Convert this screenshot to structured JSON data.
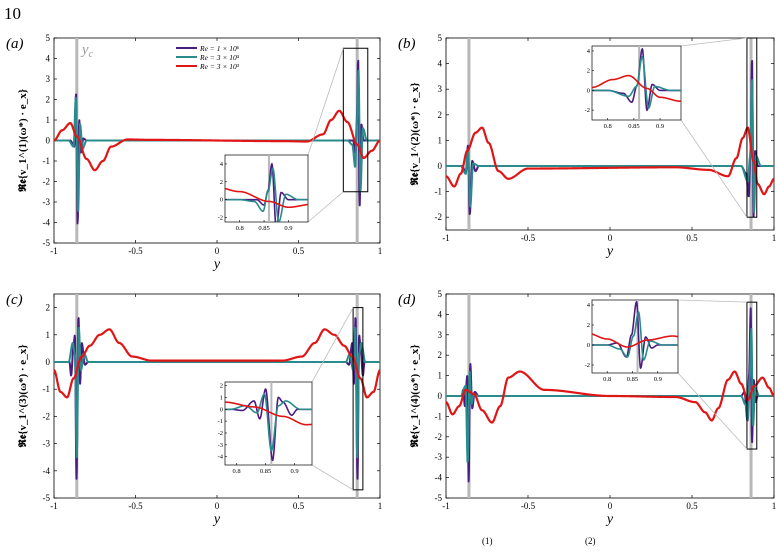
{
  "page": {
    "number": "10",
    "caption_fragment_sups": [
      "(1)",
      "(2)"
    ]
  },
  "colors": {
    "Re_1e6": "#4b1c80",
    "Re_3e5": "#2a8a8c",
    "Re_3e3": "#e01515",
    "critical_layer": "#b8b8b8"
  },
  "legend": [
    "Re = 1 × 10⁶",
    "Re = 3 × 10⁵",
    "Re = 3 × 10³"
  ],
  "critical_layer_label": "y_c",
  "chart_data": [
    {
      "type": "line",
      "panel": "(a)",
      "ylabel": "𝕽𝖊{v_1^(1)(ω*) · e_x}",
      "xlabel": "y",
      "xlim": [
        -1,
        1
      ],
      "ylim": [
        -5,
        5
      ],
      "xticks": [
        "-1",
        "-0.5",
        "0",
        "0.5",
        "1"
      ],
      "yticks": [
        "-5",
        "-4",
        "-3",
        "-2",
        "-1",
        "0",
        "1",
        "2",
        "3",
        "4",
        "5"
      ],
      "critical_layers": [
        -0.86,
        0.86
      ],
      "series": [
        {
          "name": "Re = 1 × 10⁶",
          "x": [
            -1,
            -0.9,
            -0.875,
            -0.865,
            -0.855,
            -0.845,
            -0.835,
            -0.82,
            -0.8,
            0.8,
            0.835,
            0.85,
            0.858,
            0.866,
            0.875,
            0.885,
            0.9,
            1
          ],
          "y": [
            0,
            0,
            -0.3,
            2.3,
            -4.1,
            1.0,
            -0.6,
            0.1,
            0,
            0,
            0,
            -0.6,
            1.0,
            4.0,
            -3.2,
            0.8,
            0,
            0
          ]
        },
        {
          "name": "Re = 3 × 10⁵",
          "x": [
            -1,
            -0.91,
            -0.88,
            -0.866,
            -0.852,
            -0.84,
            -0.825,
            -0.8,
            0.8,
            0.83,
            0.848,
            0.858,
            0.868,
            0.88,
            0.895,
            0.92,
            1
          ],
          "y": [
            0,
            0,
            -0.3,
            2.1,
            -3.5,
            0.8,
            -0.4,
            0,
            0,
            -0.2,
            -1.3,
            0.9,
            3.5,
            -2.5,
            0.6,
            0,
            0
          ]
        },
        {
          "name": "Re = 3 × 10³",
          "x": [
            -1,
            -0.95,
            -0.9,
            -0.86,
            -0.8,
            -0.75,
            -0.7,
            -0.65,
            -0.55,
            -0.4,
            0.4,
            0.55,
            0.65,
            0.7,
            0.75,
            0.8,
            0.86,
            0.9,
            0.95,
            1
          ],
          "y": [
            0,
            0.5,
            0.85,
            0.2,
            -0.9,
            -1.45,
            -1.0,
            -0.3,
            0.05,
            0.03,
            -0.03,
            -0.05,
            0.3,
            1.0,
            1.45,
            0.9,
            -0.2,
            -0.85,
            -0.5,
            0
          ]
        }
      ],
      "inset": {
        "xlim": [
          0.77,
          0.94
        ],
        "ylim": [
          -2.5,
          5
        ],
        "xticks": [
          "0.8",
          "0.85",
          "0.9"
        ],
        "yticks": [
          "-2",
          "0",
          "2",
          "4"
        ]
      }
    },
    {
      "type": "line",
      "panel": "(b)",
      "ylabel": "𝕽𝖊{v_1^(2)(ω*) · e_x}",
      "xlabel": "y",
      "xlim": [
        -1,
        1
      ],
      "ylim": [
        -2.5,
        5
      ],
      "xticks": [
        "-1",
        "-0.5",
        "0",
        "0.5",
        "1"
      ],
      "yticks": [
        "-2",
        "-1",
        "0",
        "1",
        "2",
        "3",
        "4",
        "5"
      ],
      "critical_layers": [
        -0.86,
        0.86
      ],
      "series": [
        {
          "name": "Re = 1 × 10⁶",
          "x": [
            -1,
            -0.9,
            -0.88,
            -0.866,
            -0.855,
            -0.84,
            -0.82,
            -0.8,
            0.8,
            0.83,
            0.846,
            0.856,
            0.866,
            0.875,
            0.885,
            0.9,
            1
          ],
          "y": [
            0,
            0,
            -0.3,
            0.8,
            -1.9,
            0.2,
            -0.2,
            0,
            0,
            -0.3,
            -1.2,
            0.5,
            4.2,
            -2.0,
            0.6,
            0,
            0
          ]
        },
        {
          "name": "Re = 3 × 10⁵",
          "x": [
            -1,
            -0.91,
            -0.88,
            -0.866,
            -0.852,
            -0.835,
            -0.8,
            0.8,
            0.84,
            0.855,
            0.866,
            0.878,
            0.89,
            0.92,
            1
          ],
          "y": [
            0,
            0,
            -0.3,
            0.6,
            -1.6,
            0.1,
            0,
            0,
            -0.6,
            0.4,
            3.4,
            -1.8,
            0.4,
            0,
            0
          ]
        },
        {
          "name": "Re = 3 × 10³",
          "x": [
            -1,
            -0.95,
            -0.91,
            -0.87,
            -0.82,
            -0.78,
            -0.74,
            -0.68,
            -0.62,
            -0.5,
            0.4,
            0.6,
            0.72,
            0.77,
            0.81,
            0.84,
            0.875,
            0.9,
            0.94,
            0.97,
            1
          ],
          "y": [
            -0.4,
            -0.8,
            -0.3,
            0.6,
            1.3,
            1.5,
            0.9,
            -0.2,
            -0.5,
            -0.1,
            -0.05,
            -0.15,
            -0.4,
            0.3,
            1.1,
            1.5,
            0.2,
            -0.7,
            -1.1,
            -0.8,
            -0.5
          ]
        }
      ],
      "inset": {
        "xlim": [
          0.77,
          0.94
        ],
        "ylim": [
          -3,
          4.5
        ],
        "xticks": [
          "0.8",
          "0.85",
          "0.9"
        ],
        "yticks": [
          "-2",
          "0",
          "2",
          "4"
        ]
      }
    },
    {
      "type": "line",
      "panel": "(c)",
      "ylabel": "𝕽𝖊{v_1^(3)(ω*) · e_x}",
      "xlabel": "y",
      "xlim": [
        -1,
        1
      ],
      "ylim": [
        -5,
        2.5
      ],
      "xticks": [
        "-1",
        "-0.5",
        "0",
        "0.5",
        "1"
      ],
      "yticks": [
        "-5",
        "-4",
        "-3",
        "-2",
        "-1",
        "0",
        "1",
        "2"
      ],
      "critical_layers": [
        -0.86,
        0.86
      ],
      "series": [
        {
          "name": "Re = 1 × 10⁶",
          "x": [
            -1,
            -0.905,
            -0.895,
            -0.88,
            -0.872,
            -0.862,
            -0.85,
            -0.84,
            -0.83,
            -0.81,
            -0.79,
            0.79,
            0.81,
            0.83,
            0.84,
            0.85,
            0.862,
            0.872,
            0.88,
            0.895,
            0.905,
            1
          ],
          "y": [
            0,
            0,
            -0.5,
            0.6,
            1.0,
            -4.3,
            1.7,
            -0.8,
            0.7,
            -0.1,
            0,
            0,
            -0.1,
            0.7,
            -0.8,
            1.7,
            -4.3,
            1.0,
            0.6,
            -0.5,
            0,
            0
          ]
        },
        {
          "name": "Re = 3 × 10⁵",
          "x": [
            -1,
            -0.91,
            -0.885,
            -0.872,
            -0.86,
            -0.848,
            -0.835,
            -0.815,
            -0.79,
            0.79,
            0.815,
            0.835,
            0.848,
            0.86,
            0.872,
            0.885,
            0.91,
            1
          ],
          "y": [
            0,
            0,
            0.7,
            0.3,
            -3.5,
            1.3,
            -0.3,
            0.3,
            0,
            0,
            0.3,
            -0.3,
            1.3,
            -3.5,
            0.3,
            0.7,
            0,
            0
          ]
        },
        {
          "name": "Re = 3 × 10³",
          "x": [
            -1,
            -0.96,
            -0.92,
            -0.88,
            -0.83,
            -0.78,
            -0.72,
            -0.66,
            -0.6,
            -0.52,
            -0.4,
            0,
            0.4,
            0.52,
            0.6,
            0.66,
            0.72,
            0.78,
            0.83,
            0.88,
            0.92,
            0.96,
            1
          ],
          "y": [
            -0.3,
            -1.1,
            -1.3,
            -0.6,
            0.2,
            0.6,
            1.0,
            1.2,
            0.7,
            0.2,
            0.05,
            0.05,
            0.05,
            0.2,
            0.7,
            1.2,
            1.0,
            0.6,
            0.2,
            -0.6,
            -1.3,
            -1.1,
            -0.3
          ]
        }
      ],
      "inset": {
        "xlim": [
          0.78,
          0.93
        ],
        "ylim": [
          -4.7,
          2.3
        ],
        "xticks": [
          "0.8",
          "0.85",
          "0.9"
        ],
        "yticks": [
          "-4",
          "-3",
          "-2",
          "-1",
          "0",
          "1",
          "2"
        ]
      }
    },
    {
      "type": "line",
      "panel": "(d)",
      "ylabel": "𝕽𝖊{v_1^(4)(ω*) · e_x}",
      "xlabel": "y",
      "xlim": [
        -1,
        1
      ],
      "ylim": [
        -5,
        5
      ],
      "xticks": [
        "-1",
        "-0.5",
        "0",
        "0.5",
        "1"
      ],
      "yticks": [
        "-5",
        "-4",
        "-3",
        "-2",
        "-1",
        "0",
        "1",
        "2",
        "3",
        "4",
        "5"
      ],
      "critical_layers": [
        -0.86,
        0.86
      ],
      "series": [
        {
          "name": "Re = 1 × 10⁶",
          "x": [
            -1,
            -0.905,
            -0.895,
            -0.885,
            -0.87,
            -0.862,
            -0.852,
            -0.84,
            -0.825,
            -0.8,
            0.8,
            0.82,
            0.838,
            0.848,
            0.858,
            0.866,
            0.876,
            0.888,
            0.9,
            1
          ],
          "y": [
            0,
            0,
            0.3,
            -0.5,
            1.0,
            -4.2,
            1.6,
            -0.6,
            0.2,
            0,
            0,
            0.2,
            -1.2,
            1.0,
            4.3,
            -2.3,
            0.8,
            -0.3,
            0,
            0
          ]
        },
        {
          "name": "Re = 3 × 10⁵",
          "x": [
            -1,
            -0.91,
            -0.88,
            -0.868,
            -0.856,
            -0.845,
            -0.83,
            -0.8,
            0.8,
            0.825,
            0.84,
            0.852,
            0.862,
            0.872,
            0.885,
            0.91,
            1
          ],
          "y": [
            0,
            0,
            0.5,
            -3.3,
            1.2,
            -0.4,
            0.1,
            0,
            0,
            -0.4,
            -1.2,
            0.9,
            3.3,
            -1.5,
            0.4,
            0,
            0
          ]
        },
        {
          "name": "Re = 3 × 10³",
          "x": [
            -1,
            -0.96,
            -0.92,
            -0.88,
            -0.83,
            -0.78,
            -0.72,
            -0.67,
            -0.62,
            -0.55,
            -0.4,
            0,
            0.4,
            0.52,
            0.58,
            0.62,
            0.66,
            0.72,
            0.76,
            0.8,
            0.84,
            0.88,
            0.93,
            0.97,
            1
          ],
          "y": [
            -0.3,
            -0.9,
            -0.5,
            0.3,
            0.1,
            -0.7,
            -1.3,
            -0.5,
            0.9,
            1.2,
            0.3,
            0,
            -0.05,
            -0.3,
            -0.8,
            -1.2,
            -0.6,
            0.8,
            1.2,
            0.6,
            -0.2,
            0.5,
            0.9,
            0.4,
            0
          ]
        }
      ],
      "inset": {
        "xlim": [
          0.77,
          0.94
        ],
        "ylim": [
          -2.8,
          4.5
        ],
        "xticks": [
          "0.8",
          "0.85",
          "0.9"
        ],
        "yticks": [
          "-2",
          "0",
          "2",
          "4"
        ]
      }
    }
  ]
}
